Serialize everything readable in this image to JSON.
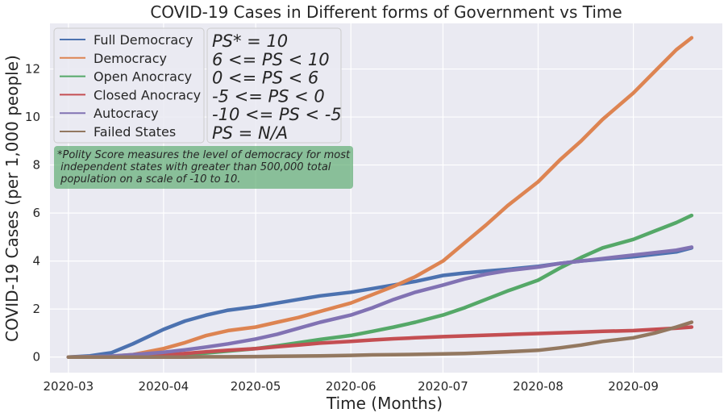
{
  "chart_data": {
    "type": "line",
    "title": "COVID-19 Cases in Different forms of Government vs Time",
    "xlabel": "Time (Months)",
    "ylabel": "COVID-19 Cases (per 1,000 people)",
    "xlim": [
      "2020-02-24",
      "2020-09-30"
    ],
    "ylim": [
      -0.65,
      13.9
    ],
    "x_ticks": [
      "2020-03-01",
      "2020-04-01",
      "2020-05-01",
      "2020-06-01",
      "2020-07-01",
      "2020-08-01",
      "2020-09-01"
    ],
    "x_tick_labels": [
      "2020-03",
      "2020-04",
      "2020-05",
      "2020-06",
      "2020-07",
      "2020-08",
      "2020-09"
    ],
    "y_ticks": [
      0,
      2,
      4,
      6,
      8,
      10,
      12
    ],
    "y_tick_labels": [
      "0",
      "2",
      "4",
      "6",
      "8",
      "10",
      "12"
    ],
    "grid": true,
    "legend_position": "top-left",
    "x": [
      "2020-03-01",
      "2020-03-08",
      "2020-03-15",
      "2020-03-22",
      "2020-04-01",
      "2020-04-08",
      "2020-04-15",
      "2020-04-22",
      "2020-05-01",
      "2020-05-08",
      "2020-05-15",
      "2020-05-22",
      "2020-06-01",
      "2020-06-08",
      "2020-06-15",
      "2020-06-22",
      "2020-07-01",
      "2020-07-08",
      "2020-07-15",
      "2020-07-22",
      "2020-08-01",
      "2020-08-08",
      "2020-08-15",
      "2020-08-22",
      "2020-09-01",
      "2020-09-08",
      "2020-09-15",
      "2020-09-20"
    ],
    "series": [
      {
        "name": "Full Democracy",
        "color": "#4c72b0",
        "values": [
          0.0,
          0.05,
          0.18,
          0.55,
          1.15,
          1.5,
          1.75,
          1.95,
          2.1,
          2.25,
          2.4,
          2.55,
          2.7,
          2.85,
          3.0,
          3.15,
          3.4,
          3.5,
          3.58,
          3.65,
          3.78,
          3.9,
          4.0,
          4.08,
          4.18,
          4.28,
          4.38,
          4.55
        ]
      },
      {
        "name": "Democracy",
        "color": "#dd8452",
        "values": [
          0.0,
          0.01,
          0.03,
          0.1,
          0.35,
          0.6,
          0.9,
          1.1,
          1.25,
          1.45,
          1.65,
          1.9,
          2.25,
          2.6,
          2.95,
          3.35,
          4.0,
          4.75,
          5.5,
          6.3,
          7.3,
          8.2,
          9.0,
          9.9,
          11.0,
          11.9,
          12.8,
          13.3
        ]
      },
      {
        "name": "Open Anocracy",
        "color": "#55a868",
        "values": [
          0.0,
          0.0,
          0.01,
          0.02,
          0.05,
          0.1,
          0.17,
          0.25,
          0.35,
          0.47,
          0.6,
          0.73,
          0.9,
          1.07,
          1.25,
          1.45,
          1.75,
          2.05,
          2.4,
          2.75,
          3.2,
          3.7,
          4.15,
          4.55,
          4.9,
          5.25,
          5.6,
          5.9
        ]
      },
      {
        "name": "Closed Anocracy",
        "color": "#c44e52",
        "values": [
          0.0,
          0.0,
          0.01,
          0.03,
          0.08,
          0.15,
          0.22,
          0.28,
          0.35,
          0.43,
          0.5,
          0.58,
          0.65,
          0.71,
          0.76,
          0.8,
          0.85,
          0.88,
          0.91,
          0.94,
          0.98,
          1.01,
          1.04,
          1.07,
          1.1,
          1.15,
          1.2,
          1.25
        ]
      },
      {
        "name": "Autocracy",
        "color": "#8172b3",
        "values": [
          0.0,
          0.01,
          0.04,
          0.1,
          0.2,
          0.3,
          0.42,
          0.55,
          0.75,
          0.95,
          1.2,
          1.45,
          1.75,
          2.05,
          2.4,
          2.7,
          3.0,
          3.25,
          3.45,
          3.6,
          3.75,
          3.9,
          4.0,
          4.1,
          4.25,
          4.35,
          4.45,
          4.58
        ]
      },
      {
        "name": "Failed States",
        "color": "#937860",
        "values": [
          0.0,
          0.0,
          0.0,
          0.0,
          0.0,
          0.0,
          0.01,
          0.01,
          0.02,
          0.03,
          0.04,
          0.05,
          0.07,
          0.09,
          0.1,
          0.11,
          0.13,
          0.15,
          0.18,
          0.22,
          0.28,
          0.38,
          0.5,
          0.65,
          0.8,
          1.0,
          1.25,
          1.45
        ]
      }
    ],
    "polity_labels": [
      "PS* = 10",
      "6 <= PS < 10",
      "0 <= PS < 6",
      "-5 <= PS < 0",
      "-10 <= PS < -5",
      "PS = N/A"
    ],
    "annotation": [
      "*Polity Score measures the level of democracy for most",
      " independent states with greater than 500,000 total",
      " population on a scale of -10 to 10."
    ],
    "colors": {
      "plot_background": "#eaeaf2",
      "grid": "#ffffff",
      "annotation_box": "#55a868"
    }
  }
}
